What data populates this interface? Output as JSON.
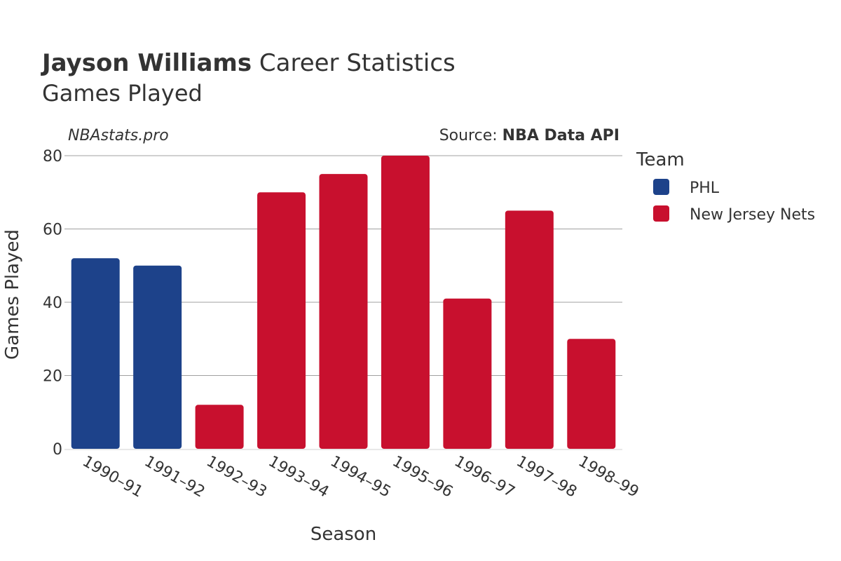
{
  "title": {
    "player": "Jayson Williams",
    "suffix": "Career Statistics",
    "subtitle": "Games Played"
  },
  "watermark": "NBAstats.pro",
  "source": {
    "prefix": "Source: ",
    "name": "NBA Data API"
  },
  "legend": {
    "title": "Team",
    "items": [
      {
        "label": "PHL",
        "color": "#1d428a"
      },
      {
        "label": "New Jersey Nets",
        "color": "#c8102e"
      }
    ]
  },
  "chart_data": {
    "type": "bar",
    "title": "Jayson Williams Career Statistics",
    "subtitle": "Games Played",
    "xlabel": "Season",
    "ylabel": "Games Played",
    "ylim": [
      0,
      80
    ],
    "yticks": [
      0,
      20,
      40,
      60,
      80
    ],
    "grid": true,
    "legend_position": "top-right",
    "categories": [
      "1990–91",
      "1991–92",
      "1992–93",
      "1993–94",
      "1994–95",
      "1995–96",
      "1996–97",
      "1997–98",
      "1998–99"
    ],
    "series": [
      {
        "name": "PHL",
        "color": "#1d428a",
        "values": [
          52,
          50,
          null,
          null,
          null,
          null,
          null,
          null,
          null
        ]
      },
      {
        "name": "New Jersey Nets",
        "color": "#c8102e",
        "values": [
          null,
          null,
          12,
          70,
          75,
          80,
          41,
          65,
          30
        ]
      }
    ]
  }
}
